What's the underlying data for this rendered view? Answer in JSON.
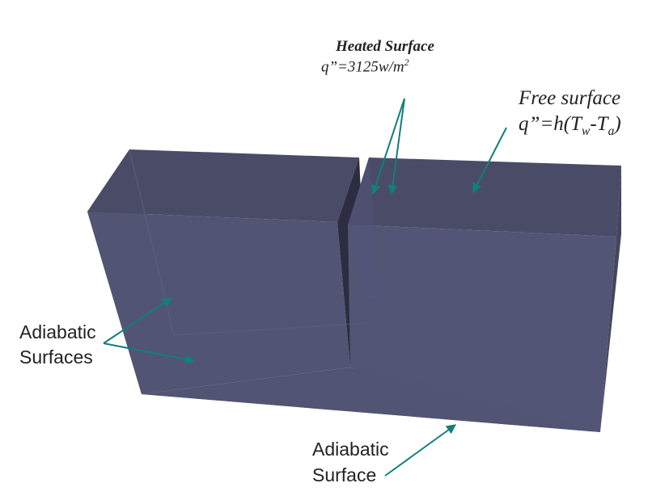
{
  "labels": {
    "heated_title": "Heated Surface",
    "heated_flux_prefix": "q”=3125w/m",
    "heated_flux_exp": "2",
    "free_title": "Free surface",
    "free_eq_a": "q”=h(T",
    "free_eq_sub_w": "w",
    "free_eq_b": "-T",
    "free_eq_sub_a": "a",
    "free_eq_c": ")",
    "adiabatic_sides_1": "Adiabatic",
    "adiabatic_sides_2": "Surfaces",
    "adiabatic_bottom_1": "Adiabatic",
    "adiabatic_bottom_2": "Surface"
  },
  "colors": {
    "solid_front": "#535576",
    "solid_top": "#4a4b67",
    "solid_side": "#46475f",
    "slot_dark": "#2c2d40",
    "arrow": "#117f7b",
    "background": "#ffffff"
  }
}
